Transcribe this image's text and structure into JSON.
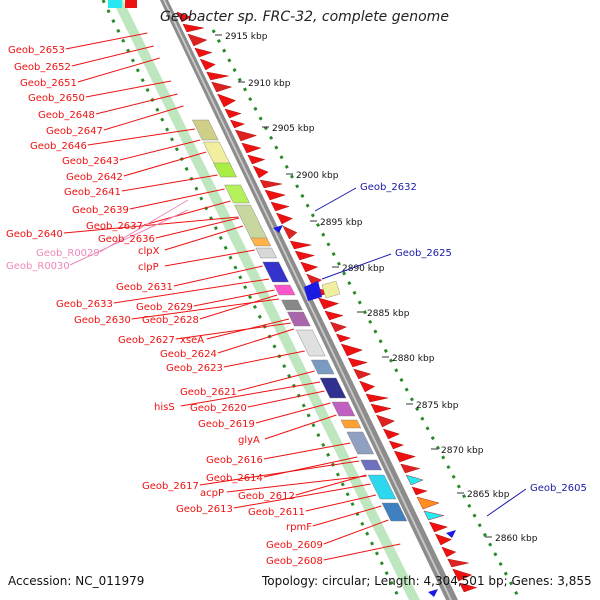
{
  "title": "Geobacter sp. FRC-32, complete genome",
  "footer": {
    "accession": "Accession: NC_011979",
    "summary": "Topology: circular; Length: 4,304,501 bp; Genes: 3,855"
  },
  "scale": {
    "ticks": [
      "2915 kbp",
      "2910 kbp",
      "2905 kbp",
      "2900 kbp",
      "2895 kbp",
      "2890 kbp",
      "2885 kbp",
      "2880 kbp",
      "2875 kbp",
      "2870 kbp",
      "2865 kbp",
      "2860 kbp"
    ]
  },
  "gene_labels": [
    "Geob_2653",
    "Geob_2652",
    "Geob_2651",
    "Geob_2650",
    "Geob_2648",
    "Geob_2647",
    "Geob_2646",
    "Geob_2643",
    "Geob_2642",
    "Geob_2641",
    "Geob_2639",
    "Geob_2637",
    "Geob_2640",
    "Geob_2636",
    "clpX",
    "clpP",
    "Geob_2631",
    "Geob_2633",
    "Geob_2629",
    "Geob_2630",
    "Geob_2628",
    "Geob_2627",
    "xseA",
    "Geob_2624",
    "Geob_2623",
    "Geob_2621",
    "hisS",
    "Geob_2620",
    "Geob_2619",
    "glyA",
    "Geob_2616",
    "Geob_2614",
    "Geob_2617",
    "acpP",
    "Geob_2612",
    "Geob_2613",
    "Geob_2611",
    "rpmF",
    "Geob_2609",
    "Geob_2608"
  ],
  "rna_labels": [
    "Geob_R0029",
    "Geob_R0030"
  ],
  "right_labels": [
    "Geob_2632",
    "Geob_2625",
    "Geob_2605"
  ],
  "colors": {
    "gene": "#ee1111",
    "rna": "#ee88bb",
    "right_gene": "#1a1aa8",
    "tick_dots": "#2a8a2a",
    "backbone": "#8c8c8c"
  }
}
